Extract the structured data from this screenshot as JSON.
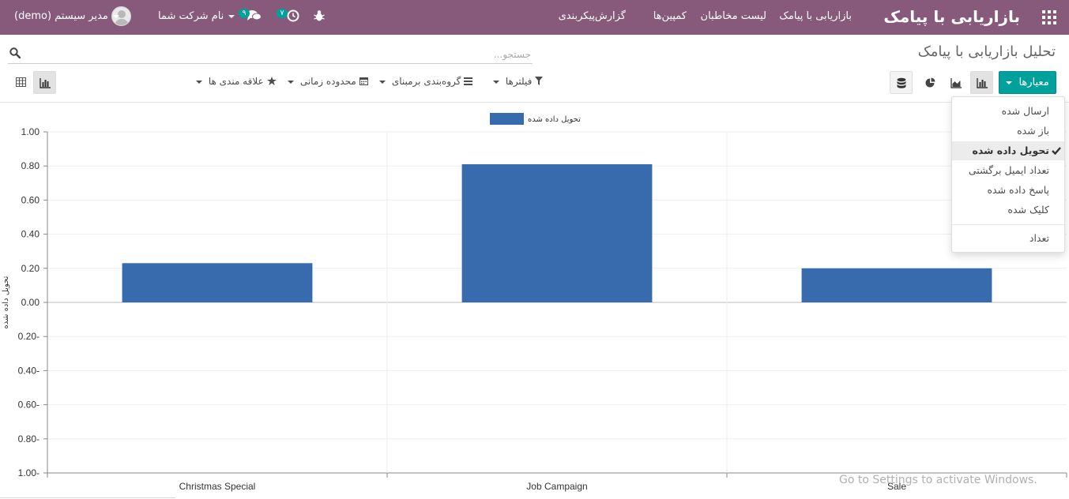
{
  "navbar": {
    "brand": "بازاریابی با پیامک",
    "menu": [
      "بازاریابی با پیامک",
      "لیست مخاطبان",
      "کمپین‌ها",
      "گزارش",
      "پیکربندی"
    ],
    "company": "نام شرکت شما",
    "user": "مدیر سیستم (demo)",
    "activity_count": "۷",
    "message_count": "۹"
  },
  "control_panel": {
    "title": "تحلیل بازاریابی با پیامک",
    "search_placeholder": "جستجو...",
    "measures_label": "معیارها",
    "filters_label": "فیلترها",
    "groupby_label": "گروه‌بندی برمبنای",
    "timerange_label": "محدوده زمانی",
    "favorites_label": "علاقه مندی ها"
  },
  "measures_menu": {
    "items": [
      {
        "label": "ارسال شده",
        "selected": false
      },
      {
        "label": "باز شده",
        "selected": false
      },
      {
        "label": "تحویل داده شده",
        "selected": true
      },
      {
        "label": "تعداد ایمیل برگشتی",
        "selected": false
      },
      {
        "label": "پاسخ داده شده",
        "selected": false
      },
      {
        "label": "کلیک شده",
        "selected": false
      }
    ],
    "count_label": "تعداد"
  },
  "chart_data": {
    "type": "bar",
    "categories": [
      "Christmas Special",
      "Job Campaign",
      "Sale"
    ],
    "series": [
      {
        "name": "تحویل داده شده",
        "values": [
          0.23,
          0.81,
          0.2
        ],
        "color": "#376bae"
      }
    ],
    "ylabel": "تحویل داده شده",
    "ylim": [
      -1,
      1
    ],
    "yticks": [
      "1.00",
      "0.80",
      "0.60",
      "0.40",
      "0.20",
      "0.00",
      "0.20-",
      "0.40-",
      "0.60-",
      "0.80-",
      "1.00-"
    ],
    "grid": true,
    "legend": "top"
  },
  "watermark": "Go to Settings to activate Windows."
}
